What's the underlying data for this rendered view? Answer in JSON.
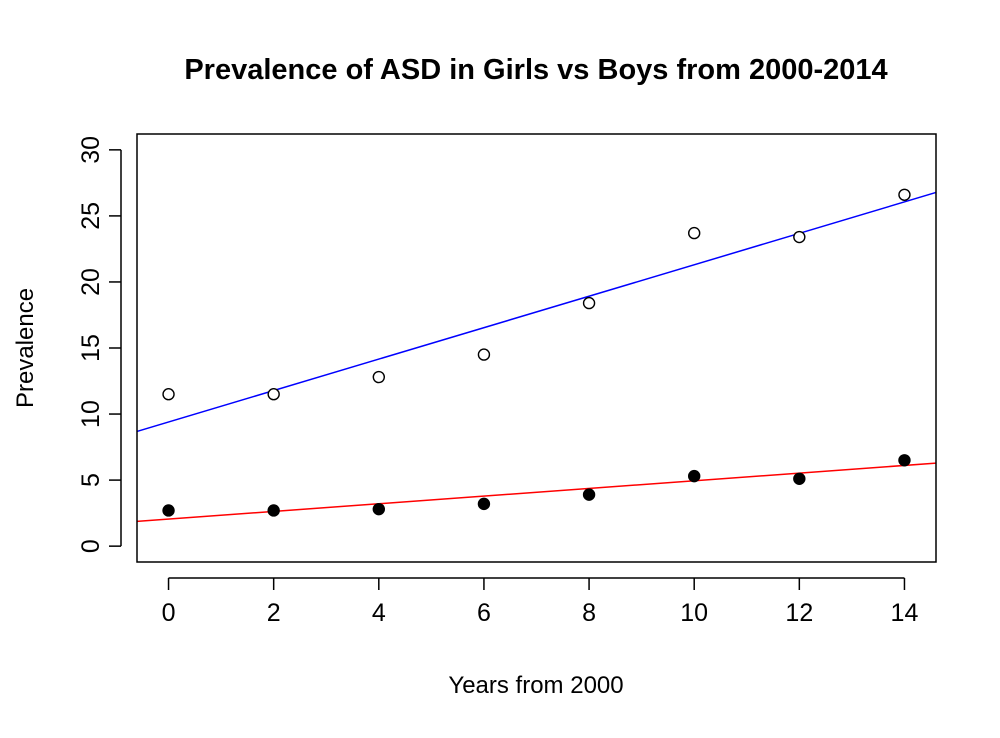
{
  "chart_data": {
    "type": "scatter",
    "title": "Prevalence of ASD in Girls vs Boys from 2000-2014",
    "xlabel": "Years from 2000",
    "ylabel": "Prevalence",
    "xlim": [
      -0.6,
      14.6
    ],
    "ylim": [
      -1.2,
      31.2
    ],
    "x_ticks": [
      "0",
      "2",
      "4",
      "6",
      "8",
      "10",
      "12",
      "14"
    ],
    "y_ticks": [
      "0",
      "5",
      "10",
      "15",
      "20",
      "25",
      "30"
    ],
    "grid": false,
    "legend": "none",
    "series": [
      {
        "marker": "open-circle",
        "color": "#000000",
        "x": [
          0,
          2,
          4,
          6,
          8,
          10,
          12,
          14
        ],
        "y": [
          11.5,
          11.5,
          12.8,
          14.5,
          18.4,
          23.7,
          23.4,
          26.6
        ]
      },
      {
        "marker": "filled-circle",
        "color": "#000000",
        "x": [
          0,
          2,
          4,
          6,
          8,
          10,
          12,
          14
        ],
        "y": [
          2.7,
          2.7,
          2.8,
          3.2,
          3.9,
          5.3,
          5.1,
          6.5
        ]
      }
    ],
    "lines": [
      {
        "color": "#0000ff",
        "intercept": 9.4,
        "slope": 1.19
      },
      {
        "color": "#ff0000",
        "intercept": 2.05,
        "slope": 0.29
      }
    ]
  }
}
